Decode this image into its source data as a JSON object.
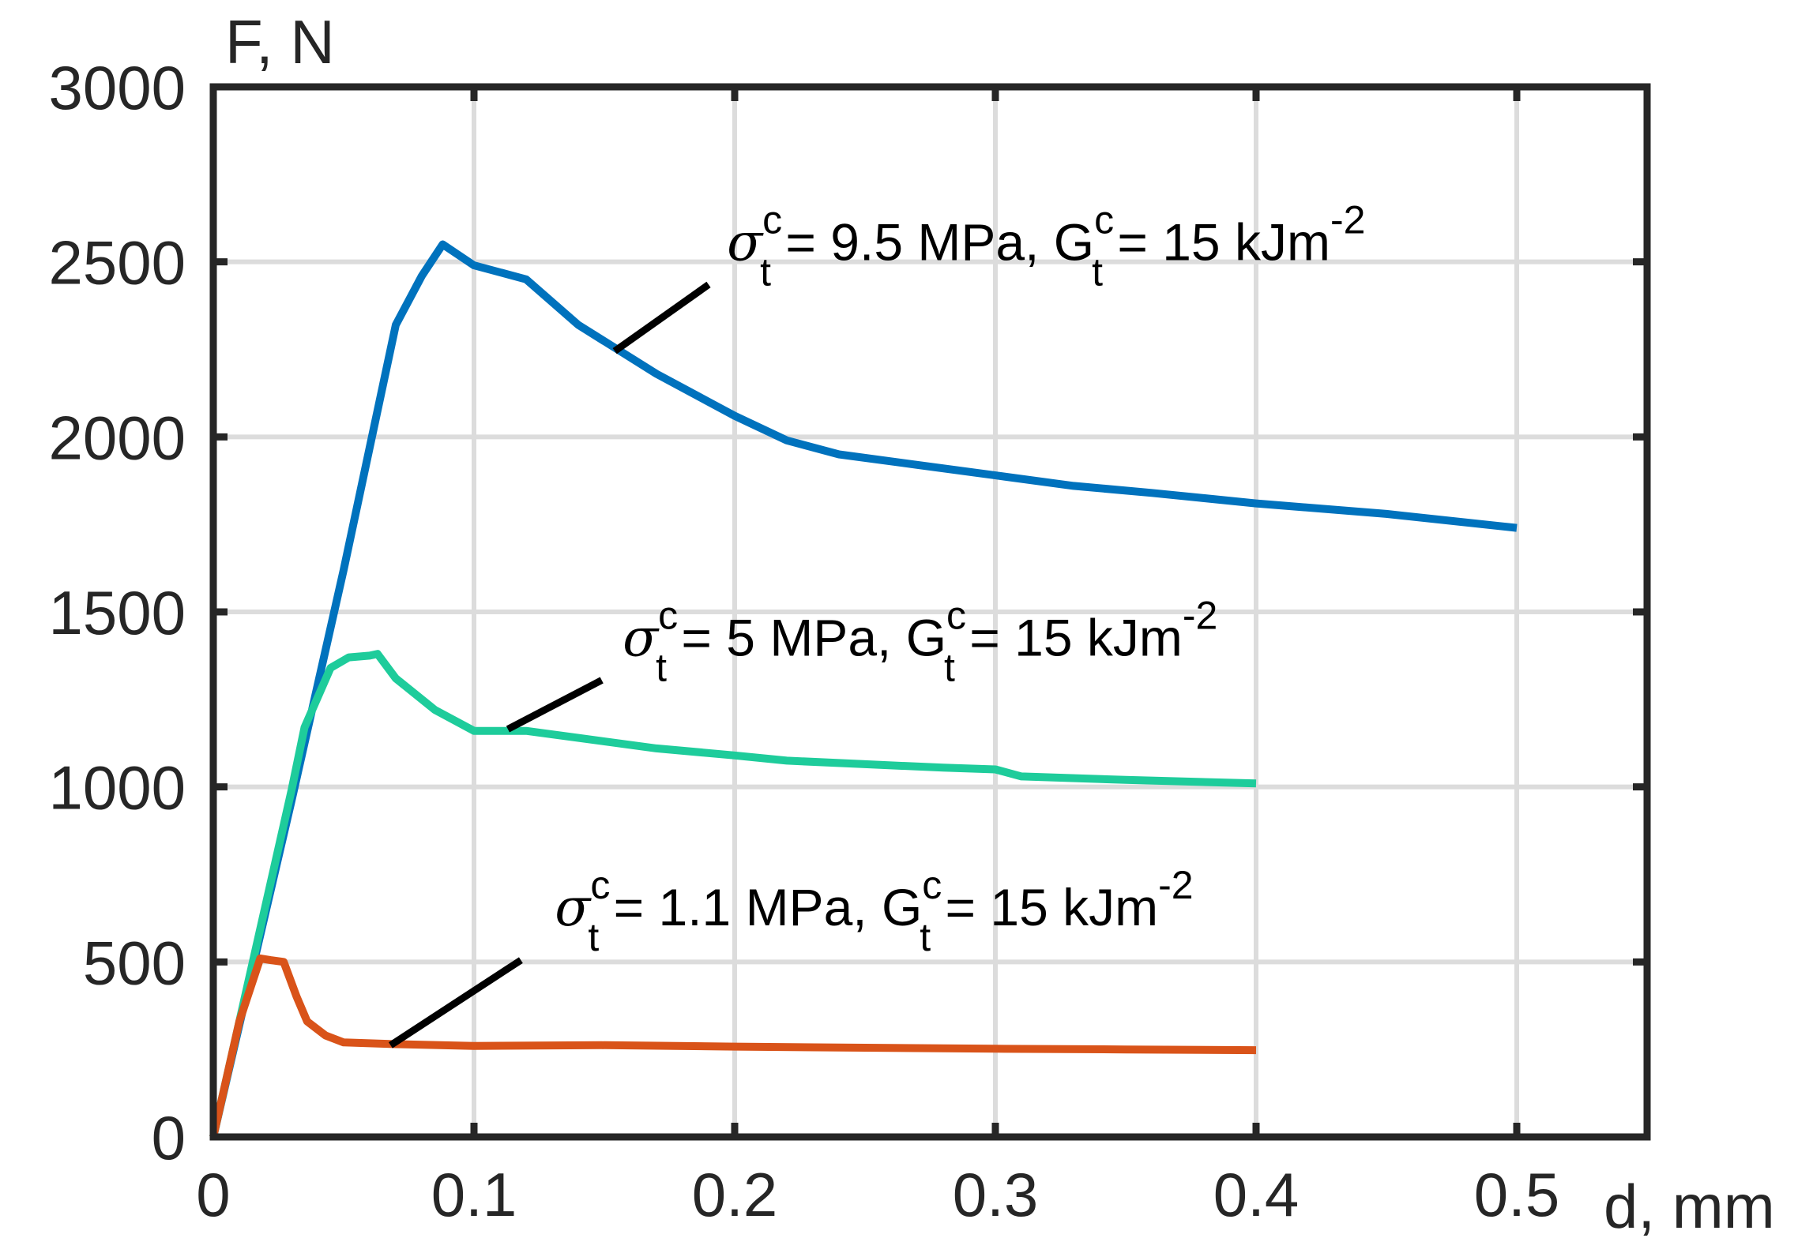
{
  "chart_data": {
    "type": "line",
    "xlabel": "d, mm",
    "ylabel": "F, N",
    "xlim": [
      0,
      0.55
    ],
    "ylim": [
      0,
      3000
    ],
    "x_ticks": [
      0,
      0.1,
      0.2,
      0.3,
      0.4,
      0.5
    ],
    "x_tick_labels": [
      "0",
      "0.1",
      "0.2",
      "0.3",
      "0.4",
      "0.5"
    ],
    "y_ticks": [
      0,
      500,
      1000,
      1500,
      2000,
      2500,
      3000
    ],
    "y_tick_labels": [
      "0",
      "500",
      "1000",
      "1500",
      "2000",
      "2500",
      "3000"
    ],
    "grid": true,
    "colors": {
      "axis": "#262626",
      "grid": "#dcdcdc",
      "annotation": "#000000"
    },
    "series": [
      {
        "color": "#0072BD",
        "x": [
          0,
          0.01,
          0.02,
          0.03,
          0.04,
          0.05,
          0.06,
          0.07,
          0.08,
          0.088,
          0.1,
          0.12,
          0.14,
          0.17,
          0.2,
          0.22,
          0.24,
          0.27,
          0.3,
          0.33,
          0.36,
          0.4,
          0.45,
          0.5
        ],
        "y": [
          0,
          320,
          640,
          960,
          1290,
          1620,
          1970,
          2320,
          2460,
          2550,
          2490,
          2450,
          2320,
          2180,
          2060,
          1990,
          1950,
          1920,
          1890,
          1860,
          1840,
          1810,
          1780,
          1740
        ]
      },
      {
        "color": "#1ECC9B",
        "x": [
          0,
          0.01,
          0.02,
          0.03,
          0.035,
          0.045,
          0.052,
          0.06,
          0.063,
          0.07,
          0.085,
          0.1,
          0.12,
          0.14,
          0.17,
          0.2,
          0.22,
          0.25,
          0.28,
          0.3,
          0.31,
          0.35,
          0.4
        ],
        "y": [
          0,
          330,
          660,
          990,
          1170,
          1340,
          1370,
          1375,
          1380,
          1310,
          1220,
          1160,
          1160,
          1140,
          1110,
          1090,
          1075,
          1065,
          1055,
          1050,
          1030,
          1020,
          1010
        ]
      },
      {
        "color": "#D95319",
        "x": [
          0,
          0.01,
          0.018,
          0.022,
          0.027,
          0.032,
          0.036,
          0.043,
          0.05,
          0.07,
          0.1,
          0.15,
          0.2,
          0.25,
          0.3,
          0.35,
          0.4
        ],
        "y": [
          0,
          330,
          510,
          505,
          500,
          400,
          330,
          290,
          270,
          265,
          260,
          262,
          258,
          255,
          252,
          250,
          248
        ]
      }
    ],
    "annotations": [
      {
        "symbol": "σ",
        "sup1": "c",
        "sub1": "t",
        "mid": " = 9.5 MPa, G",
        "sup2": "c",
        "sub2": "t",
        "end": " = 15 kJm",
        "sup3": "-2",
        "text_anchor": [
          0.197,
          2505
        ],
        "pointer_from": [
          0.19,
          2435
        ],
        "pointer_to": [
          0.154,
          2245
        ]
      },
      {
        "symbol": "σ",
        "sup1": "c",
        "sub1": "t",
        "mid": " = 5 MPa, G",
        "sup2": "c",
        "sub2": "t",
        "end": " = 15 kJm",
        "sup3": "-2",
        "text_anchor": [
          0.157,
          1375
        ],
        "pointer_from": [
          0.149,
          1305
        ],
        "pointer_to": [
          0.113,
          1165
        ]
      },
      {
        "symbol": "σ",
        "sup1": "c",
        "sub1": "t",
        "mid": " = 1.1 MPa, G",
        "sup2": "c",
        "sub2": "t",
        "end": " = 15 kJm",
        "sup3": "-2",
        "text_anchor": [
          0.131,
          605
        ],
        "pointer_from": [
          0.118,
          505
        ],
        "pointer_to": [
          0.068,
          262
        ]
      }
    ]
  }
}
